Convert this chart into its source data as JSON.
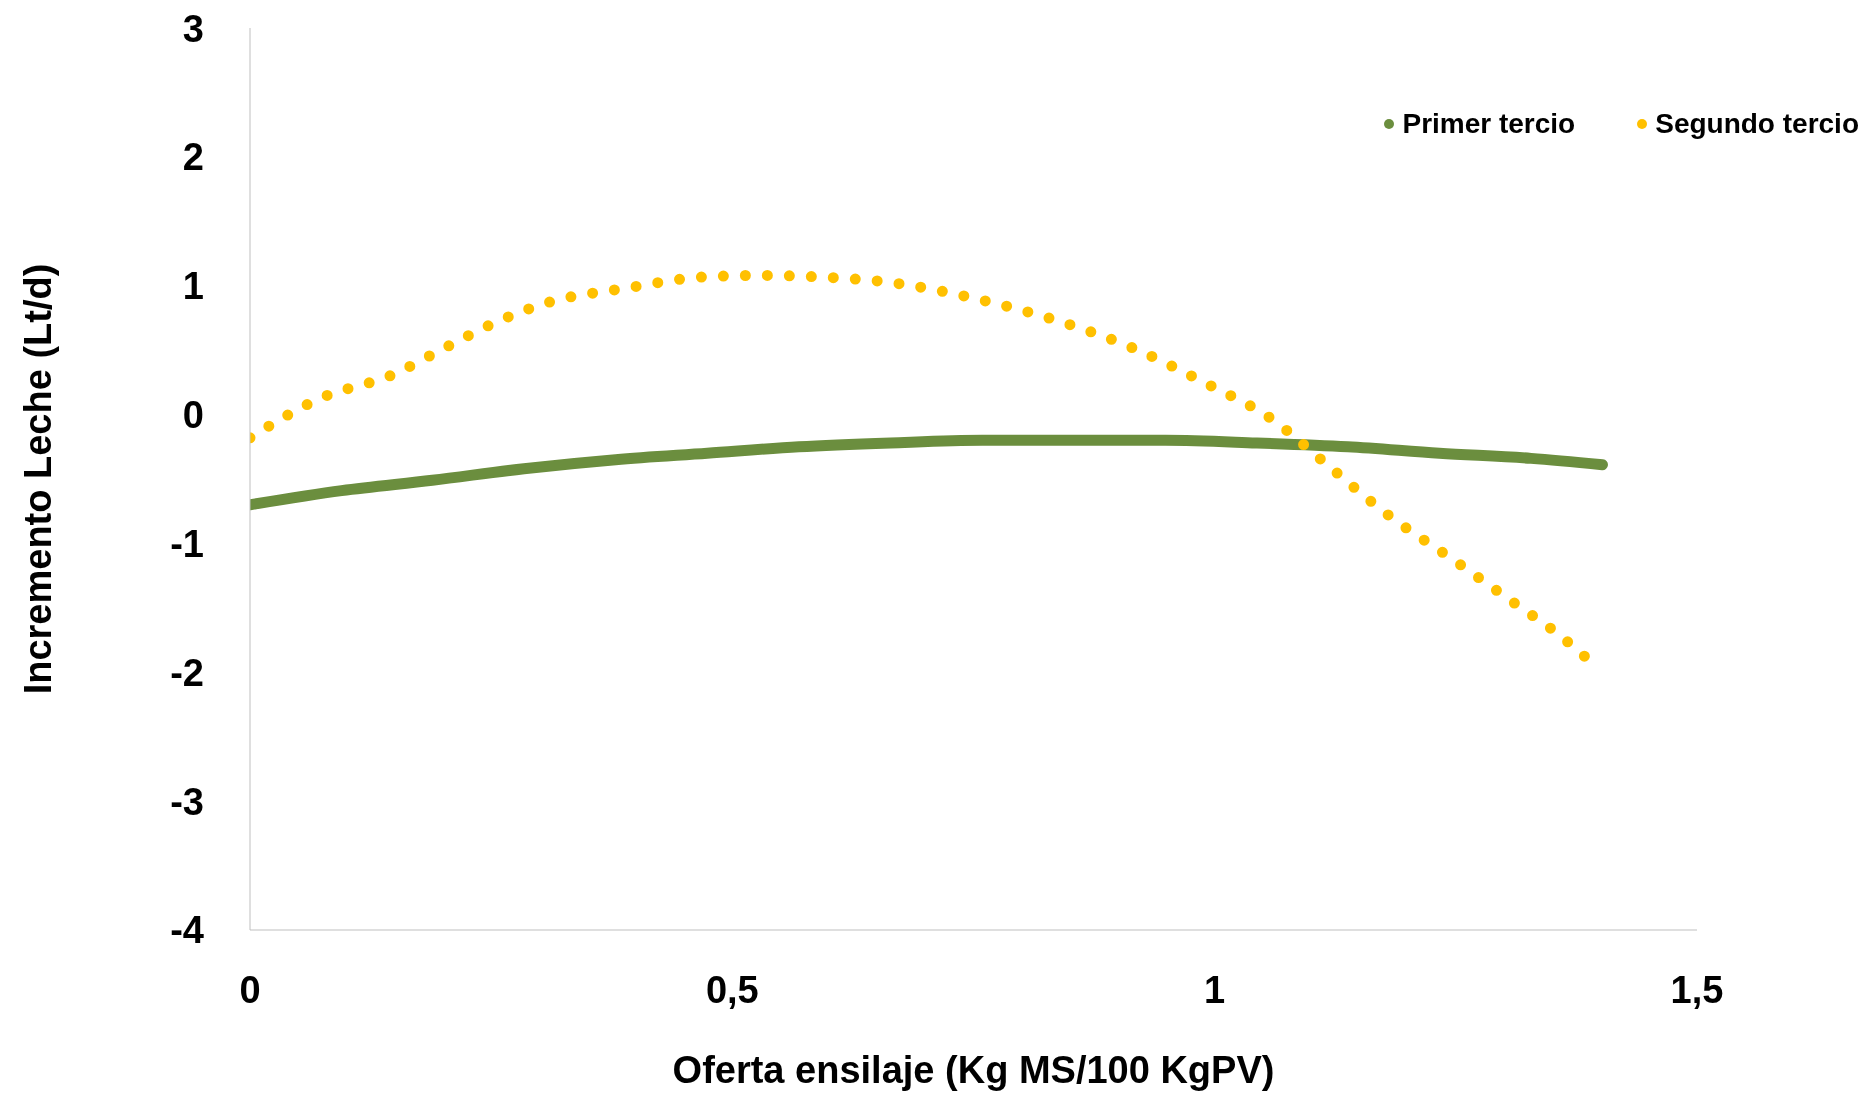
{
  "chart_data": {
    "type": "line",
    "xlabel": "Oferta ensilaje (Kg MS/100 KgPV)",
    "ylabel": "Incremento Leche (Lt/d)",
    "xlim": [
      0,
      1.5
    ],
    "xticks": [
      0,
      {
        "value": 0.5,
        "label": "0,5"
      },
      1,
      {
        "value": 1.5,
        "label": "1,5"
      }
    ],
    "ylim": [
      -4,
      3
    ],
    "yticks": [
      -4,
      -3,
      -2,
      -1,
      0,
      1,
      2,
      3
    ],
    "grid": false,
    "legend": "top right",
    "series": [
      {
        "name": "Primer tercio",
        "color": "#6b8e3e",
        "line_style": "solid",
        "x": [
          0,
          0.095,
          0.189,
          0.284,
          0.379,
          0.474,
          0.569,
          0.664,
          0.759,
          0.854,
          0.949,
          1.043,
          1.138,
          1.233,
          1.328,
          1.402
        ],
        "values": [
          -0.7,
          -0.59,
          -0.51,
          -0.42,
          -0.35,
          -0.3,
          -0.25,
          -0.22,
          -0.2,
          -0.2,
          -0.2,
          -0.22,
          -0.25,
          -0.3,
          -0.34,
          -0.39
        ]
      },
      {
        "name": "Segundo tercio",
        "color": "#ffc000",
        "line_style": "dotted",
        "x": [
          0,
          0.074,
          0.148,
          0.2,
          0.253,
          0.309,
          0.389,
          0.474,
          0.528,
          0.585,
          0.669,
          0.752,
          0.832,
          0.911,
          0.989,
          1.062,
          1.112,
          1.18,
          1.248,
          1.312,
          1.352,
          1.396
        ],
        "values": [
          -0.18,
          0.13,
          0.31,
          0.51,
          0.71,
          0.87,
          0.98,
          1.07,
          1.08,
          1.07,
          1.02,
          0.9,
          0.74,
          0.53,
          0.25,
          -0.05,
          -0.36,
          -0.78,
          -1.13,
          -1.47,
          -1.68,
          -1.96
        ]
      }
    ]
  }
}
